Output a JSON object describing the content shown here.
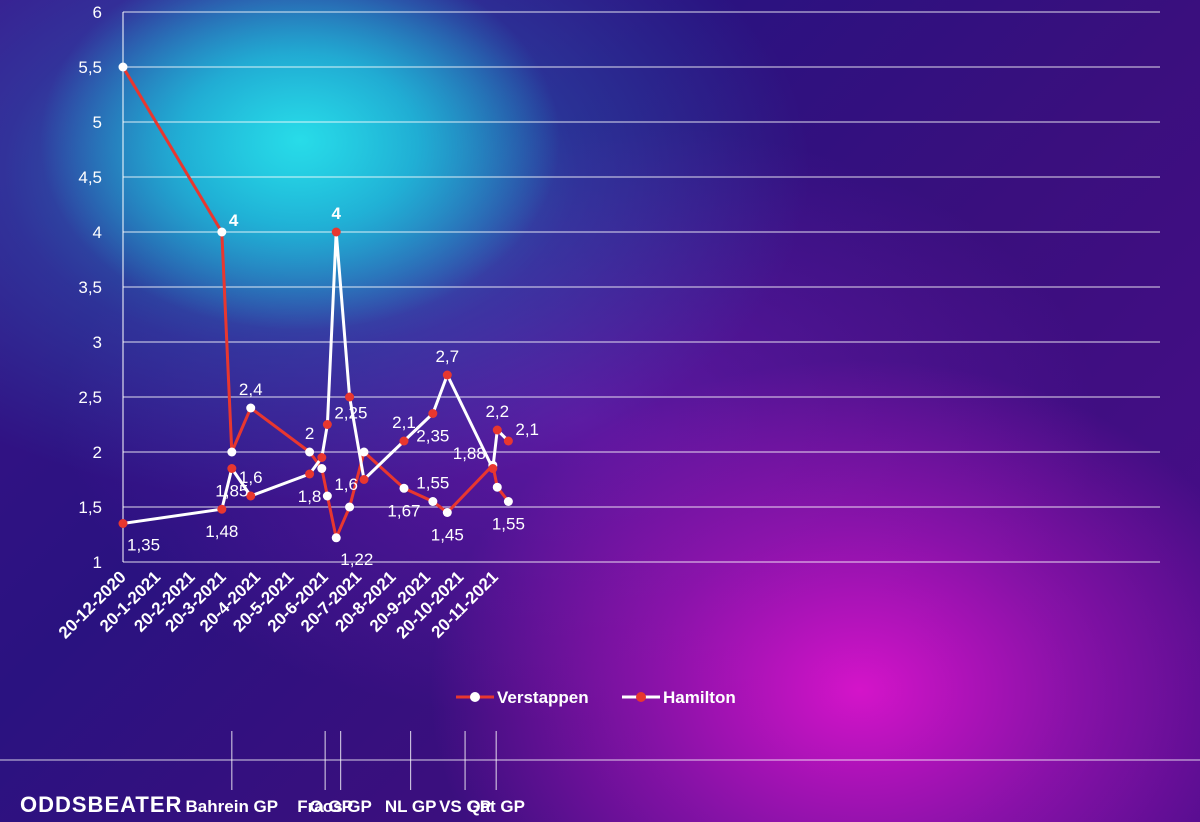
{
  "brand": "ODDSBEATER",
  "colors": {
    "verstappen": "#e8372f",
    "hamilton": "#ffffff",
    "grid": "#ffffff"
  },
  "chart_data": {
    "type": "line",
    "title": "",
    "xlabel": "",
    "ylabel": "",
    "ylim": [
      1,
      6
    ],
    "yticks": [
      1,
      1.5,
      2,
      2.5,
      3,
      3.5,
      4,
      4.5,
      5,
      5.5,
      6
    ],
    "ytick_labels": [
      "1",
      "1,5",
      "2",
      "2,5",
      "3",
      "3,5",
      "4",
      "4,5",
      "5",
      "5,5",
      "6"
    ],
    "xticks": [
      "2020-12-20",
      "2021-01-20",
      "2021-02-20",
      "2021-03-20",
      "2021-04-20",
      "2021-05-20",
      "2021-06-20",
      "2021-07-20",
      "2021-08-20",
      "2021-09-20",
      "2021-10-20",
      "2021-11-20"
    ],
    "xtick_labels": [
      "20-12-2020",
      "20-1-2021",
      "20-2-2021",
      "20-3-2021",
      "20-4-2021",
      "20-5-2021",
      "20-6-2021",
      "20-7-2021",
      "20-8-2021",
      "20-9-2021",
      "20-10-2021",
      "20-11-2021"
    ],
    "grid": "horizontal",
    "legend": "bottom-center",
    "series": [
      {
        "name": "Verstappen",
        "color": "#e8372f",
        "points": [
          {
            "date": "2020-12-20",
            "y": 5.5
          },
          {
            "date": "2021-03-19",
            "y": 4
          },
          {
            "date": "2021-03-28",
            "y": 2
          },
          {
            "date": "2021-04-14",
            "y": 2.4
          },
          {
            "date": "2021-06-06",
            "y": 2
          },
          {
            "date": "2021-06-17",
            "y": 1.85
          },
          {
            "date": "2021-06-22",
            "y": 1.6
          },
          {
            "date": "2021-06-30",
            "y": 1.22
          },
          {
            "date": "2021-07-12",
            "y": 1.5
          },
          {
            "date": "2021-07-25",
            "y": 2
          },
          {
            "date": "2021-08-30",
            "y": 1.67
          },
          {
            "date": "2021-09-25",
            "y": 1.55
          },
          {
            "date": "2021-10-08",
            "y": 1.45
          },
          {
            "date": "2021-11-18",
            "y": 1.88
          },
          {
            "date": "2021-11-22",
            "y": 1.68
          },
          {
            "date": "2021-12-02",
            "y": 1.55
          }
        ]
      },
      {
        "name": "Hamilton",
        "color": "#ffffff",
        "points": [
          {
            "date": "2020-12-20",
            "y": 1.35
          },
          {
            "date": "2021-03-19",
            "y": 1.48
          },
          {
            "date": "2021-03-28",
            "y": 1.85
          },
          {
            "date": "2021-04-14",
            "y": 1.6
          },
          {
            "date": "2021-06-06",
            "y": 1.8
          },
          {
            "date": "2021-06-17",
            "y": 1.95
          },
          {
            "date": "2021-06-22",
            "y": 2.25
          },
          {
            "date": "2021-06-30",
            "y": 4
          },
          {
            "date": "2021-07-12",
            "y": 2.5
          },
          {
            "date": "2021-07-25",
            "y": 1.75
          },
          {
            "date": "2021-08-30",
            "y": 2.1
          },
          {
            "date": "2021-09-25",
            "y": 2.35
          },
          {
            "date": "2021-10-08",
            "y": 2.7
          },
          {
            "date": "2021-11-18",
            "y": 1.85
          },
          {
            "date": "2021-11-22",
            "y": 2.2
          },
          {
            "date": "2021-12-02",
            "y": 2.1
          }
        ]
      }
    ],
    "data_labels": [
      {
        "date": "2020-12-20",
        "y": 1.35,
        "text": "1,35",
        "pos": "below-right"
      },
      {
        "date": "2021-03-19",
        "y": 4,
        "text": "4",
        "pos": "right"
      },
      {
        "date": "2021-03-19",
        "y": 1.48,
        "text": "1,48",
        "pos": "below"
      },
      {
        "date": "2021-03-28",
        "y": 1.85,
        "text": "1,85",
        "pos": "below"
      },
      {
        "date": "2021-04-14",
        "y": 2.4,
        "text": "2,4",
        "pos": "above"
      },
      {
        "date": "2021-04-14",
        "y": 1.6,
        "text": "1,6",
        "pos": "above"
      },
      {
        "date": "2021-06-06",
        "y": 2,
        "text": "2",
        "pos": "above"
      },
      {
        "date": "2021-06-06",
        "y": 1.8,
        "text": "1,8",
        "pos": "below"
      },
      {
        "date": "2021-06-22",
        "y": 2.25,
        "text": "2,25",
        "pos": "right"
      },
      {
        "date": "2021-06-22",
        "y": 1.6,
        "text": "1,6",
        "pos": "right"
      },
      {
        "date": "2021-06-30",
        "y": 4,
        "text": "4",
        "pos": "above"
      },
      {
        "date": "2021-06-30",
        "y": 1.22,
        "text": "1,22",
        "pos": "below-right"
      },
      {
        "date": "2021-08-30",
        "y": 2.1,
        "text": "2,1",
        "pos": "above"
      },
      {
        "date": "2021-08-30",
        "y": 1.67,
        "text": "1,67",
        "pos": "below"
      },
      {
        "date": "2021-09-25",
        "y": 2.35,
        "text": "2,35",
        "pos": "below"
      },
      {
        "date": "2021-09-25",
        "y": 1.55,
        "text": "1,55",
        "pos": "above"
      },
      {
        "date": "2021-10-08",
        "y": 2.7,
        "text": "2,7",
        "pos": "above"
      },
      {
        "date": "2021-10-08",
        "y": 1.45,
        "text": "1,45",
        "pos": "below"
      },
      {
        "date": "2021-11-18",
        "y": 1.88,
        "text": "1,88",
        "pos": "left"
      },
      {
        "date": "2021-11-22",
        "y": 2.2,
        "text": "2,2",
        "pos": "above"
      },
      {
        "date": "2021-12-02",
        "y": 2.1,
        "text": "2,1",
        "pos": "right"
      },
      {
        "date": "2021-12-02",
        "y": 1.55,
        "text": "1,55",
        "pos": "below"
      }
    ],
    "events": [
      {
        "date": "2021-03-28",
        "label": "Bahrein GP"
      },
      {
        "date": "2021-06-20",
        "label": "Fra GP"
      },
      {
        "date": "2021-07-04",
        "label": "Oos GP"
      },
      {
        "date": "2021-09-05",
        "label": "NL GP"
      },
      {
        "date": "2021-10-24",
        "label": "VS GP"
      },
      {
        "date": "2021-11-21",
        "label": "Qat GP"
      }
    ]
  }
}
